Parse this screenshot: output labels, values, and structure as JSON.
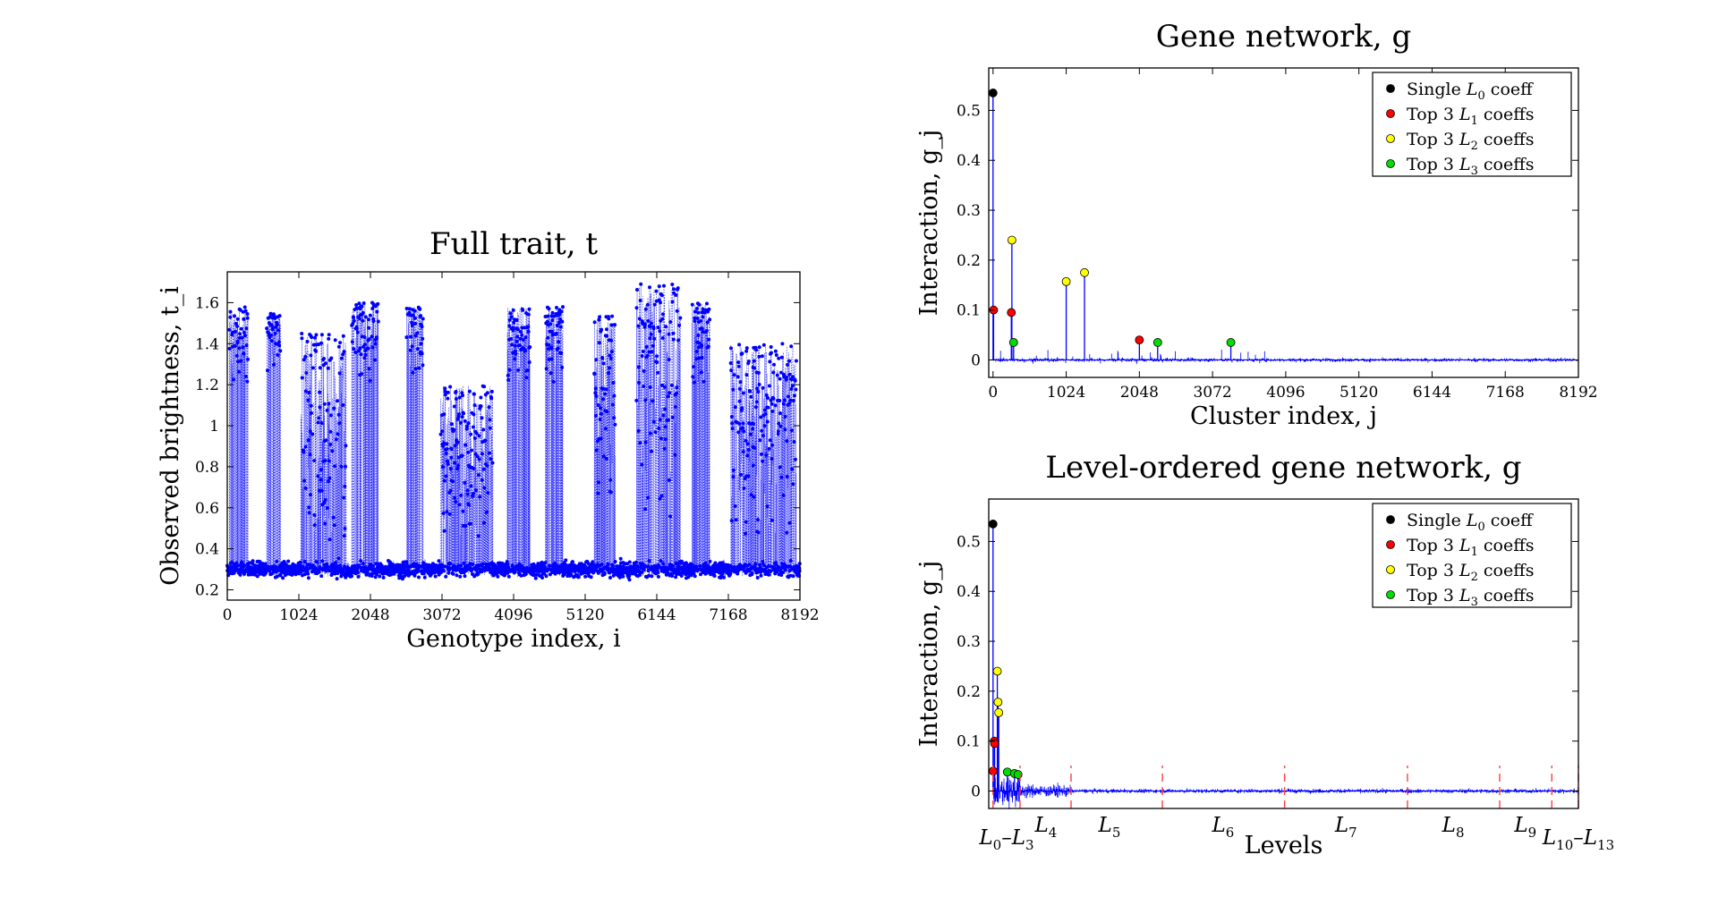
{
  "colors": {
    "trace": "#0000ff",
    "divider": "#ff4040",
    "L0": "#000000",
    "L1": "#ff0000",
    "L2": "#ffff00",
    "L3": "#00dd00"
  },
  "chart_data": [
    {
      "id": "full-trait",
      "type": "scatter",
      "title": "Full trait, t",
      "xlabel": "Genotype index, i",
      "ylabel": "Observed brightness, t_i",
      "xlim": [
        0,
        8192
      ],
      "ylim": [
        0.15,
        1.75
      ],
      "xticks": [
        0,
        1024,
        2048,
        3072,
        4096,
        5120,
        6144,
        7168,
        8192
      ],
      "yticks": [
        0.2,
        0.4,
        0.6,
        0.8,
        1,
        1.2,
        1.4,
        1.6
      ],
      "n_points": 8192,
      "baseline_level": 0.3,
      "high_segments": [
        {
          "x": [
            30,
            300
          ],
          "y": [
            1.2,
            1.58
          ]
        },
        {
          "x": [
            560,
            760
          ],
          "y": [
            1.25,
            1.55
          ]
        },
        {
          "x": [
            1050,
            1700
          ],
          "y": [
            0.4,
            1.45
          ]
        },
        {
          "x": [
            1780,
            2160
          ],
          "y": [
            1.2,
            1.6
          ]
        },
        {
          "x": [
            2560,
            2800
          ],
          "y": [
            1.2,
            1.58
          ]
        },
        {
          "x": [
            3050,
            3800
          ],
          "y": [
            0.4,
            1.2
          ]
        },
        {
          "x": [
            4000,
            4330
          ],
          "y": [
            1.2,
            1.58
          ]
        },
        {
          "x": [
            4550,
            4800
          ],
          "y": [
            1.2,
            1.58
          ]
        },
        {
          "x": [
            5250,
            5550
          ],
          "y": [
            0.6,
            1.55
          ]
        },
        {
          "x": [
            5850,
            6480
          ],
          "y": [
            0.5,
            1.69
          ]
        },
        {
          "x": [
            6650,
            6900
          ],
          "y": [
            1.2,
            1.6
          ]
        },
        {
          "x": [
            7200,
            8150
          ],
          "y": [
            0.4,
            1.4
          ]
        }
      ]
    },
    {
      "id": "gene-network",
      "type": "scatter",
      "title": "Gene network, g",
      "xlabel": "Cluster index, j",
      "ylabel": "Interaction, g_j",
      "xlim": [
        -60,
        8192
      ],
      "ylim": [
        -0.035,
        0.585
      ],
      "xticks": [
        0,
        1024,
        2048,
        3072,
        4096,
        5120,
        6144,
        7168,
        8192
      ],
      "yticks": [
        0,
        0.1,
        0.2,
        0.3,
        0.4,
        0.5
      ],
      "legend": {
        "position": "top-right",
        "entries": [
          {
            "pre": "Single ",
            "sub": "0",
            "post": " coeff",
            "key": "L0"
          },
          {
            "pre": "Top 3 ",
            "sub": "1",
            "post": " coeffs",
            "key": "L1"
          },
          {
            "pre": "Top 3 ",
            "sub": "2",
            "post": " coeffs",
            "key": "L2"
          },
          {
            "pre": "Top 3 ",
            "sub": "3",
            "post": " coeffs",
            "key": "L3"
          }
        ]
      },
      "series": [
        {
          "key": "L0",
          "x": [
            0
          ],
          "y": [
            0.535
          ]
        },
        {
          "key": "L1",
          "x": [
            8,
            256,
            2048
          ],
          "y": [
            0.1,
            0.095,
            0.04
          ]
        },
        {
          "key": "L2",
          "x": [
            264,
            1024,
            1280
          ],
          "y": [
            0.24,
            0.157,
            0.175
          ]
        },
        {
          "key": "L3",
          "x": [
            288,
            2304,
            3328
          ],
          "y": [
            0.035,
            0.035,
            0.035
          ]
        }
      ]
    },
    {
      "id": "level-ordered",
      "type": "scatter",
      "title": "Level-ordered gene network, g",
      "xlabel": "Levels",
      "ylabel": "Interaction, g_j",
      "xlim": [
        -60,
        8192
      ],
      "ylim": [
        -0.035,
        0.585
      ],
      "yticks": [
        0,
        0.1,
        0.2,
        0.3,
        0.4,
        0.5
      ],
      "dividers": [
        378,
        1092,
        2370,
        4080,
        5800,
        7090,
        7820,
        8192
      ],
      "level_labels": [
        {
          "base": "L",
          "sub": "0",
          "mid": "–L",
          "sub2": "3",
          "x": 190
        },
        {
          "base": "L",
          "sub": "4",
          "x": 740
        },
        {
          "base": "L",
          "sub": "5",
          "x": 1630
        },
        {
          "base": "L",
          "sub": "6",
          "x": 3220
        },
        {
          "base": "L",
          "sub": "7",
          "x": 4940
        },
        {
          "base": "L",
          "sub": "8",
          "x": 6440
        },
        {
          "base": "L",
          "sub": "9",
          "x": 7450
        },
        {
          "base": "L",
          "sub": "10",
          "mid": "–L",
          "sub2": "13",
          "x": 8192
        }
      ],
      "legend": {
        "position": "top-right",
        "entries": [
          {
            "pre": "Single ",
            "sub": "0",
            "post": " coeff",
            "key": "L0"
          },
          {
            "pre": "Top 3 ",
            "sub": "1",
            "post": " coeffs",
            "key": "L1"
          },
          {
            "pre": "Top 3 ",
            "sub": "2",
            "post": " coeffs",
            "key": "L2"
          },
          {
            "pre": "Top 3 ",
            "sub": "3",
            "post": " coeffs",
            "key": "L3"
          }
        ]
      },
      "series": [
        {
          "key": "L0",
          "x": [
            0
          ],
          "y": [
            0.535
          ]
        },
        {
          "key": "L1",
          "x": [
            2,
            18,
            22
          ],
          "y": [
            0.04,
            0.1,
            0.095
          ]
        },
        {
          "key": "L2",
          "x": [
            60,
            70,
            80
          ],
          "y": [
            0.24,
            0.178,
            0.157
          ]
        },
        {
          "key": "L3",
          "x": [
            200,
            300,
            350
          ],
          "y": [
            0.038,
            0.035,
            0.033
          ]
        }
      ]
    }
  ]
}
